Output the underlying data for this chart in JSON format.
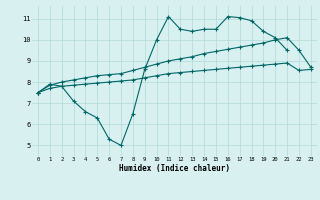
{
  "xlabel": "Humidex (Indice chaleur)",
  "bg_color": "#d8f0f0",
  "grid_color": "#b0d8d8",
  "line_color": "#006666",
  "xlim": [
    -0.5,
    23.5
  ],
  "ylim": [
    4.5,
    11.6
  ],
  "xticks": [
    0,
    1,
    2,
    3,
    4,
    5,
    6,
    7,
    8,
    9,
    10,
    11,
    12,
    13,
    14,
    15,
    16,
    17,
    18,
    19,
    20,
    21,
    22,
    23
  ],
  "yticks": [
    5,
    6,
    7,
    8,
    9,
    10,
    11
  ],
  "line1_x": [
    0,
    1,
    2,
    3,
    4,
    5,
    6,
    7,
    8,
    9,
    10,
    11,
    12,
    13,
    14,
    15,
    16,
    17,
    18,
    19,
    20,
    21
  ],
  "line1_y": [
    7.5,
    7.9,
    7.8,
    7.1,
    6.6,
    6.3,
    5.3,
    5.0,
    6.5,
    8.6,
    10.0,
    11.1,
    10.5,
    10.4,
    10.5,
    10.5,
    11.1,
    11.05,
    10.9,
    10.4,
    10.1,
    9.5
  ],
  "line2_x": [
    0,
    1,
    2,
    3,
    4,
    5,
    6,
    7,
    8,
    9,
    10,
    11,
    12,
    13,
    14,
    15,
    16,
    17,
    18,
    19,
    20,
    21,
    22,
    23
  ],
  "line2_y": [
    7.5,
    7.85,
    8.0,
    8.1,
    8.2,
    8.3,
    8.35,
    8.4,
    8.55,
    8.7,
    8.85,
    9.0,
    9.1,
    9.2,
    9.35,
    9.45,
    9.55,
    9.65,
    9.75,
    9.85,
    10.0,
    10.1,
    9.5,
    8.7
  ],
  "line3_x": [
    0,
    1,
    2,
    3,
    4,
    5,
    6,
    7,
    8,
    9,
    10,
    11,
    12,
    13,
    14,
    15,
    16,
    17,
    18,
    19,
    20,
    21,
    22,
    23
  ],
  "line3_y": [
    7.5,
    7.7,
    7.8,
    7.85,
    7.9,
    7.95,
    8.0,
    8.05,
    8.1,
    8.2,
    8.3,
    8.4,
    8.45,
    8.5,
    8.55,
    8.6,
    8.65,
    8.7,
    8.75,
    8.8,
    8.85,
    8.9,
    8.55,
    8.6
  ]
}
